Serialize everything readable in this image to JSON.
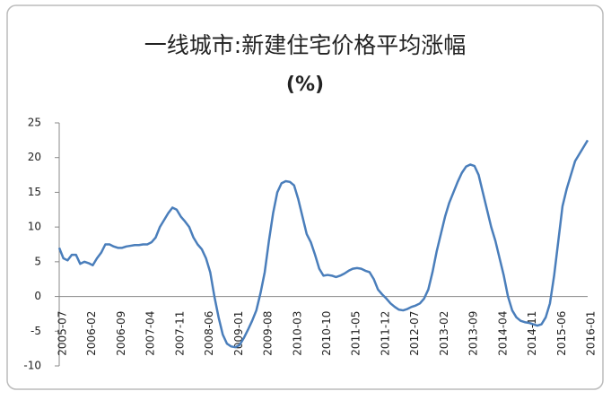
{
  "chart_data": {
    "type": "line",
    "title": "一线城市:新建住宅价格平均涨幅",
    "subtitle": "(%)",
    "categories": [
      "2005-07",
      null,
      null,
      null,
      null,
      null,
      null,
      "2006-02",
      null,
      null,
      null,
      null,
      null,
      null,
      "2006-09",
      null,
      null,
      null,
      null,
      null,
      null,
      "2007-04",
      null,
      null,
      null,
      null,
      null,
      null,
      "2007-11",
      null,
      null,
      null,
      null,
      null,
      null,
      "2008-06",
      null,
      null,
      null,
      null,
      null,
      null,
      "2009-01",
      null,
      null,
      null,
      null,
      null,
      null,
      "2009-08",
      null,
      null,
      null,
      null,
      null,
      null,
      "2010-03",
      null,
      null,
      null,
      null,
      null,
      null,
      "2010-10",
      null,
      null,
      null,
      null,
      null,
      null,
      "2011-05",
      null,
      null,
      null,
      null,
      null,
      null,
      "2011-12",
      null,
      null,
      null,
      null,
      null,
      null,
      "2012-07",
      null,
      null,
      null,
      null,
      null,
      null,
      "2013-02",
      null,
      null,
      null,
      null,
      null,
      null,
      "2013-09",
      null,
      null,
      null,
      null,
      null,
      null,
      "2014-04",
      null,
      null,
      null,
      null,
      null,
      null,
      "2014-11",
      null,
      null,
      null,
      null,
      null,
      null,
      "2015-06",
      null,
      null,
      null,
      null,
      null,
      null,
      "2016-01"
    ],
    "series": [
      {
        "name": "一线城市",
        "color": "#4a7ebb",
        "values": [
          7,
          5.5,
          5.2,
          6,
          6,
          4.7,
          5,
          4.8,
          4.5,
          5.5,
          6.3,
          7.5,
          7.5,
          7.2,
          7,
          7,
          7.2,
          7.3,
          7.4,
          7.4,
          7.5,
          7.5,
          7.8,
          8.5,
          10,
          11,
          12,
          12.8,
          12.5,
          11.5,
          10.8,
          10,
          8.5,
          7.5,
          6.8,
          5.5,
          3.5,
          0,
          -3,
          -5.5,
          -6.8,
          -7.2,
          -7.3,
          -7,
          -6,
          -4.8,
          -3.5,
          -2,
          0.5,
          3.5,
          8,
          12,
          15,
          16.3,
          16.6,
          16.5,
          16,
          14,
          11.5,
          9,
          7.8,
          6,
          4,
          3,
          3.1,
          3,
          2.8,
          3,
          3.3,
          3.7,
          4,
          4.1,
          4,
          3.7,
          3.5,
          2.5,
          1,
          0.3,
          -0.3,
          -1,
          -1.5,
          -1.9,
          -2,
          -1.8,
          -1.5,
          -1.3,
          -1,
          -0.3,
          1,
          3.5,
          6.5,
          9,
          11.5,
          13.5,
          15,
          16.5,
          17.8,
          18.7,
          19,
          18.8,
          17.5,
          15,
          12.5,
          10,
          8,
          5.5,
          3,
          0,
          -2,
          -3,
          -3.5,
          -3.7,
          -3.8,
          -4,
          -4.2,
          -4,
          -3,
          -1,
          3,
          8,
          13,
          15.5,
          17.5,
          19.5,
          20.5,
          21.5,
          22.5
        ]
      }
    ],
    "ylim": [
      -10,
      25
    ],
    "yticks": [
      -10,
      -5,
      0,
      5,
      10,
      15,
      20,
      25
    ],
    "grid": false
  }
}
